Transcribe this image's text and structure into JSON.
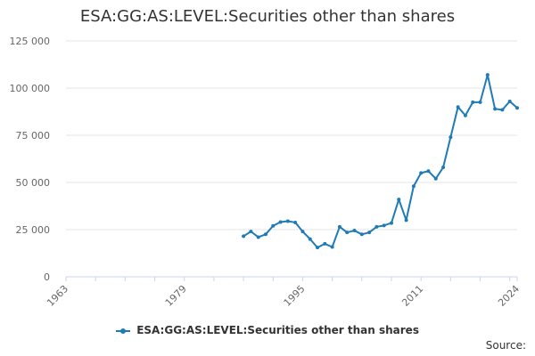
{
  "chart_data": {
    "type": "line",
    "title": "ESA:GG:AS:LEVEL:Securities other than shares",
    "xlabel": "",
    "ylabel": "",
    "xlim": [
      1963,
      2024
    ],
    "ylim": [
      0,
      125000
    ],
    "x_ticks": [
      1963,
      1979,
      1995,
      2011,
      2024
    ],
    "y_ticks": [
      0,
      25000,
      50000,
      75000,
      100000,
      125000
    ],
    "y_tick_labels": [
      "0",
      "25 000",
      "50 000",
      "75 000",
      "100 000",
      "125 000"
    ],
    "grid": "horizontal",
    "legend_position": "bottom",
    "color": "#1f7bb6",
    "series": [
      {
        "name": "ESA:GG:AS:LEVEL:Securities other than shares",
        "x": [
          1987,
          1988,
          1989,
          1990,
          1991,
          1992,
          1993,
          1994,
          1995,
          1996,
          1997,
          1998,
          1999,
          2000,
          2001,
          2002,
          2003,
          2004,
          2005,
          2006,
          2007,
          2008,
          2009,
          2010,
          2011,
          2012,
          2013,
          2014,
          2015,
          2016,
          2017,
          2018,
          2019,
          2020,
          2021,
          2022,
          2023,
          2024
        ],
        "values": [
          21500,
          24000,
          21000,
          22500,
          27000,
          29000,
          29500,
          28800,
          24000,
          20000,
          15500,
          17500,
          15800,
          26500,
          23500,
          24500,
          22500,
          23500,
          26500,
          27200,
          28500,
          41000,
          30000,
          48000,
          55000,
          56000,
          52000,
          58000,
          74000,
          90000,
          85500,
          92500,
          92500,
          107000,
          89000,
          88500,
          93000,
          89500
        ]
      }
    ]
  },
  "source_label": "Source:"
}
